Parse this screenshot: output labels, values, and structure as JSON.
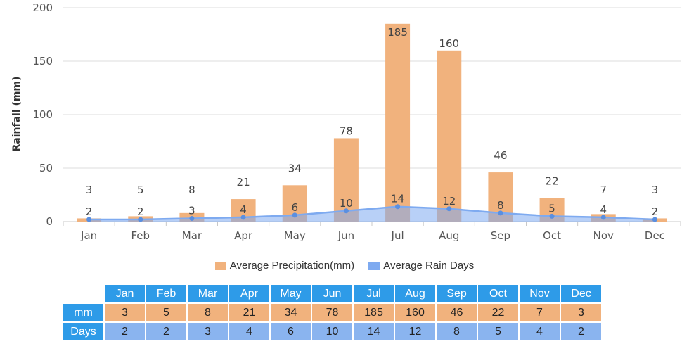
{
  "chart_data": {
    "type": "bar",
    "categories": [
      "Jan",
      "Feb",
      "Mar",
      "Apr",
      "May",
      "Jun",
      "Jul",
      "Aug",
      "Sep",
      "Oct",
      "Nov",
      "Dec"
    ],
    "series": [
      {
        "name": "Average Precipitation(mm)",
        "type": "bar",
        "color": "#f1b27d",
        "values": [
          3,
          5,
          8,
          21,
          34,
          78,
          185,
          160,
          46,
          22,
          7,
          3
        ]
      },
      {
        "name": "Average Rain Days",
        "type": "area",
        "color": "#7eaaf0",
        "values": [
          2,
          2,
          3,
          4,
          6,
          10,
          14,
          12,
          8,
          5,
          4,
          2
        ]
      }
    ],
    "ylabel": "Rainfall (mm)",
    "xlabel": "",
    "ylim": [
      0,
      200
    ],
    "yticks": [
      0,
      50,
      100,
      150,
      200
    ],
    "grid": true,
    "legend": "bottom"
  },
  "table": {
    "headers": [
      "Jan",
      "Feb",
      "Mar",
      "Apr",
      "May",
      "Jun",
      "Jul",
      "Aug",
      "Sep",
      "Oct",
      "Nov",
      "Dec"
    ],
    "rows": [
      {
        "label": "mm",
        "values": [
          "3",
          "5",
          "8",
          "21",
          "34",
          "78",
          "185",
          "160",
          "46",
          "22",
          "7",
          "3"
        ]
      },
      {
        "label": "Days",
        "values": [
          "2",
          "2",
          "3",
          "4",
          "6",
          "10",
          "14",
          "12",
          "8",
          "5",
          "4",
          "2"
        ]
      }
    ]
  }
}
